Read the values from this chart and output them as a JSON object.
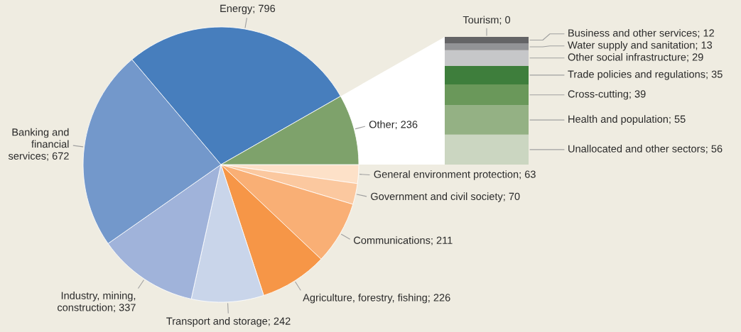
{
  "chart_data": [
    {
      "type": "pie",
      "categories": [
        "General environment protection; 63",
        "Government and civil society; 70",
        "Communications; 211",
        "Agriculture, forestry, fishing; 226",
        "Transport and storage; 242",
        "Industry, mining, construction; 337",
        "Banking and financial services; 672",
        "Energy; 796",
        "Other; 236"
      ],
      "values": [
        63,
        70,
        211,
        226,
        242,
        337,
        672,
        796,
        236
      ],
      "colors": [
        "#fde1c8",
        "#fbc89f",
        "#f9af75",
        "#f69647",
        "#c9d5ea",
        "#a0b3da",
        "#7398cb",
        "#477ebd",
        "#7ea26b"
      ]
    },
    {
      "type": "bar",
      "stacked": true,
      "tick_labels": false,
      "categories": [
        null
      ],
      "series": [
        {
          "color": "#cbd6c1",
          "values": [
            56
          ],
          "value_labels": [
            "Unallocated and other sectors; 56"
          ]
        },
        {
          "color": "#94b184",
          "values": [
            55
          ],
          "value_labels": [
            "Health and population; 55"
          ]
        },
        {
          "color": "#6a985a",
          "values": [
            39
          ],
          "value_labels": [
            "Cross-cutting; 39"
          ]
        },
        {
          "color": "#3e7e3c",
          "values": [
            35
          ],
          "value_labels": [
            "Trade policies and regulations; 35"
          ]
        },
        {
          "color": "#c6c7c9",
          "values": [
            29
          ],
          "value_labels": [
            "Other social infrastructure; 29"
          ]
        },
        {
          "color": "#929396",
          "values": [
            13
          ],
          "value_labels": [
            "Water supply and sanitation; 13"
          ]
        },
        {
          "color": "#646466",
          "values": [
            12
          ],
          "value_labels": [
            "Business and other services; 12"
          ]
        },
        {
          "color": "#3a3a3c",
          "values": [
            0
          ],
          "value_labels": [
            "Tourism; 0"
          ]
        }
      ]
    }
  ]
}
